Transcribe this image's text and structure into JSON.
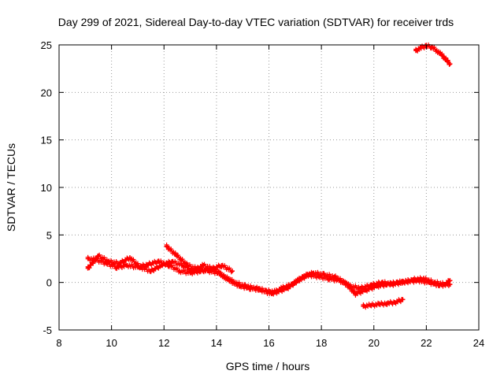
{
  "chart_data": {
    "type": "scatter",
    "title": "Day 299 of 2021, Sidereal Day-to-day VTEC variation (SDTVAR) for receiver trds",
    "xlabel": "GPS time / hours",
    "ylabel": "SDTVAR / TECUs",
    "xlim": [
      8,
      24
    ],
    "ylim": [
      -5,
      25
    ],
    "xticks": [
      8,
      10,
      12,
      14,
      16,
      18,
      20,
      22,
      24
    ],
    "yticks": [
      -5,
      0,
      5,
      10,
      15,
      20,
      25
    ],
    "xtick_labels": [
      "8",
      "10",
      "12",
      "14",
      "16",
      "18",
      "20",
      "22",
      "24"
    ],
    "ytick_labels": [
      "-5",
      "0",
      "5",
      "10",
      "15",
      "20",
      "25"
    ],
    "grid": true,
    "marker": "+",
    "series_color": "#ff0000",
    "series": [
      {
        "name": "s1",
        "x": [
          9.1,
          9.4,
          9.8,
          10.2,
          10.6,
          11.0,
          11.4,
          11.8,
          12.2,
          12.6,
          13.0,
          13.4,
          13.8,
          14.2,
          14.6
        ],
        "y": [
          2.5,
          2.4,
          2.0,
          1.6,
          1.8,
          1.6,
          1.9,
          2.2,
          1.8,
          1.2,
          1.0,
          1.2,
          1.4,
          1.8,
          1.2
        ]
      },
      {
        "name": "s2",
        "x": [
          9.1,
          9.5,
          9.9,
          10.3,
          10.7,
          11.1,
          11.5,
          11.9,
          12.3,
          12.7,
          13.1,
          13.5,
          13.9,
          14.3,
          14.7,
          15.1,
          15.5,
          15.9,
          16.3,
          16.7,
          17.1,
          17.5,
          17.9,
          18.3,
          18.7,
          19.1,
          19.5,
          19.9,
          20.3,
          20.7,
          21.1,
          21.5,
          21.9,
          22.3,
          22.7,
          22.9
        ],
        "y": [
          1.5,
          2.8,
          2.2,
          2.0,
          2.6,
          1.6,
          1.2,
          1.8,
          2.2,
          1.8,
          1.2,
          1.8,
          1.4,
          0.6,
          0.0,
          -0.4,
          -0.6,
          -0.9,
          -1.0,
          -0.6,
          0.2,
          0.8,
          0.6,
          0.4,
          0.2,
          -0.4,
          -0.6,
          -0.3,
          0.0,
          -0.2,
          0.0,
          0.3,
          0.4,
          0.0,
          -0.2,
          0.2
        ]
      },
      {
        "name": "s3",
        "x": [
          12.1,
          12.5,
          12.9,
          13.3,
          13.7,
          14.1,
          14.5,
          14.9,
          15.3,
          15.7,
          16.1,
          16.5,
          16.9,
          17.3,
          17.7,
          18.1,
          18.5,
          18.9,
          19.3,
          19.7,
          20.1,
          20.5,
          20.9,
          21.3,
          21.7,
          22.1,
          22.5,
          22.9
        ],
        "y": [
          3.8,
          2.8,
          1.8,
          1.4,
          1.2,
          1.0,
          0.2,
          -0.4,
          -0.6,
          -0.8,
          -1.2,
          -0.6,
          -0.2,
          0.6,
          1.0,
          0.8,
          0.6,
          0.0,
          -1.2,
          -0.8,
          -0.4,
          -0.2,
          0.0,
          0.1,
          0.2,
          0.0,
          -0.3,
          -0.2
        ]
      },
      {
        "name": "s4",
        "x": [
          19.6,
          19.9,
          20.2,
          20.5,
          20.8,
          21.1
        ],
        "y": [
          -2.5,
          -2.4,
          -2.3,
          -2.2,
          -2.1,
          -1.8
        ]
      },
      {
        "name": "s5",
        "x": [
          21.6,
          21.8,
          22.0,
          22.2,
          22.4,
          22.6,
          22.8,
          22.9
        ],
        "y": [
          24.4,
          24.7,
          24.9,
          24.8,
          24.4,
          23.9,
          23.3,
          23.0
        ]
      }
    ]
  }
}
